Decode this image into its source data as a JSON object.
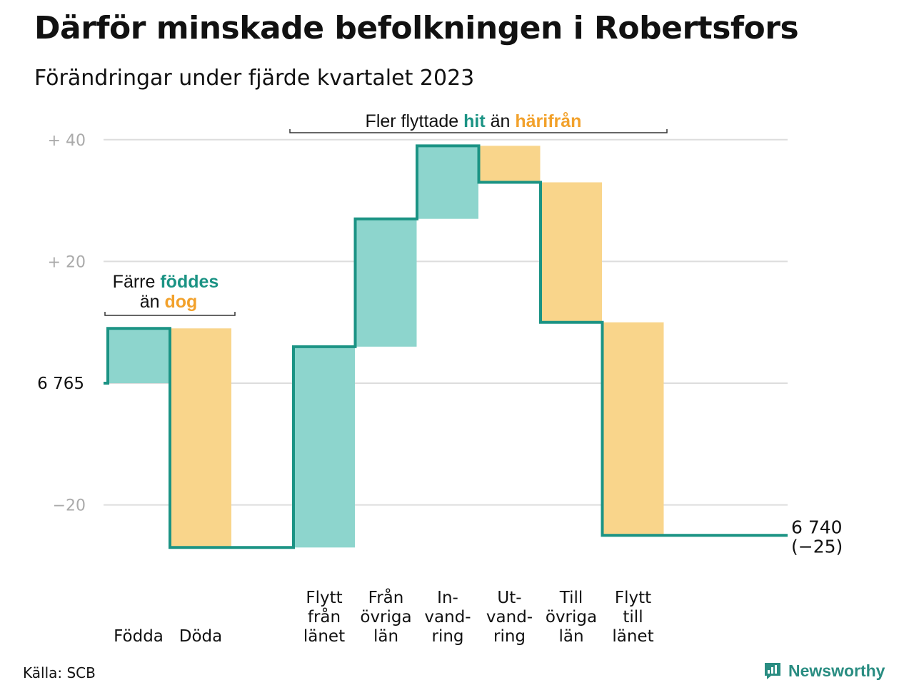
{
  "title": "Därför minskade befolkningen i Robertsfors",
  "subtitle": "Förändringar under fjärde kvartalet 2023",
  "source": "Källa: SCB",
  "brand": {
    "name": "Newsworthy",
    "icon": "newsworthy-logo-icon"
  },
  "colors": {
    "increase": "#8dd5cd",
    "decrease": "#f9d58b",
    "line": "#1b9384",
    "hit": "#1b9384",
    "dog": "#f2a12b",
    "grid": "#dddddd",
    "tick": "#aaaaaa"
  },
  "chart_data": {
    "type": "waterfall",
    "start_value": 6765,
    "end_value": 6740,
    "end_label": "6 740",
    "end_change_label": "(−25)",
    "start_label": "6 765",
    "ylim": [
      -30,
      42
    ],
    "yticks": [
      {
        "value": 40,
        "label": "+  40"
      },
      {
        "value": 20,
        "label": "+  20"
      },
      {
        "value": 0,
        "label": ""
      },
      {
        "value": -20,
        "label": "−20"
      }
    ],
    "categories": [
      {
        "label_lines": [
          "Födda"
        ],
        "value": 9
      },
      {
        "label_lines": [
          "Döda"
        ],
        "value": -36
      },
      {
        "label_lines": [
          "Flytt",
          "från",
          "länet"
        ],
        "value": 33
      },
      {
        "label_lines": [
          "Från",
          "övriga",
          "län"
        ],
        "value": 21
      },
      {
        "label_lines": [
          "In-",
          "vand-",
          "ring"
        ],
        "value": 12
      },
      {
        "label_lines": [
          "Ut-",
          "vand-",
          "ring"
        ],
        "value": -6
      },
      {
        "label_lines": [
          "Till",
          "övriga",
          "län"
        ],
        "value": -23
      },
      {
        "label_lines": [
          "Flytt",
          "till",
          "länet"
        ],
        "value": -35
      }
    ],
    "annotations": [
      {
        "line1_parts": [
          {
            "text": "Färre ",
            "style": "plain"
          },
          {
            "text": "föddes",
            "style": "hit"
          }
        ],
        "line2_parts": [
          {
            "text": "än ",
            "style": "plain"
          },
          {
            "text": "dog",
            "style": "dog"
          }
        ]
      },
      {
        "line1_parts": [
          {
            "text": "Fler flyttade ",
            "style": "plain"
          },
          {
            "text": "hit",
            "style": "hit"
          },
          {
            "text": " än ",
            "style": "plain"
          },
          {
            "text": "härifrån",
            "style": "dog"
          }
        ]
      }
    ]
  }
}
